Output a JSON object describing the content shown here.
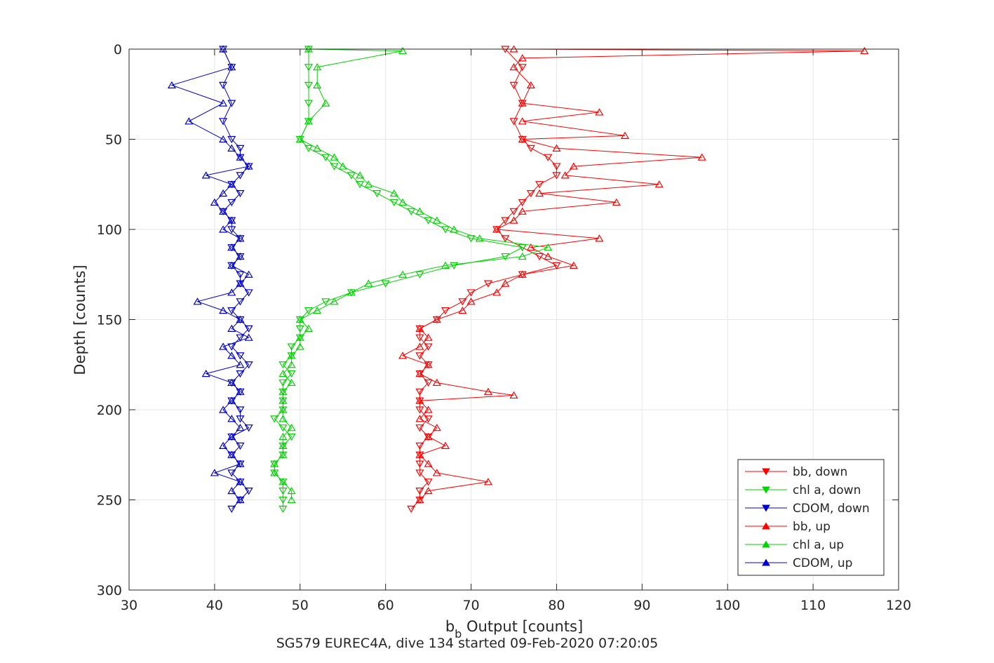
{
  "chart_data": {
    "type": "line",
    "xlabel": "b",
    "xlabel_subscript": "b",
    "xlabel_rest": " Output [counts]",
    "ylabel": "Depth [counts]",
    "caption": "SG579 EUREC4A, dive 134 started 09-Feb-2020 07:20:05",
    "xlim": [
      30,
      120
    ],
    "ylim": [
      0,
      300
    ],
    "y_reversed": true,
    "grid": true,
    "legend_position": "bottom-right",
    "x_ticks": [
      "30",
      "40",
      "50",
      "60",
      "70",
      "80",
      "90",
      "100",
      "110",
      "120"
    ],
    "y_ticks": [
      "0",
      "50",
      "100",
      "150",
      "200",
      "250",
      "300"
    ],
    "series": [
      {
        "name": "bb, down",
        "color": "#ff0000",
        "marker": "triangle-down",
        "depth": [
          0,
          10,
          20,
          30,
          40,
          50,
          55,
          60,
          65,
          70,
          75,
          80,
          85,
          90,
          95,
          100,
          105,
          110,
          115,
          120,
          125,
          130,
          135,
          140,
          145,
          150,
          155,
          160,
          165,
          170,
          175,
          180,
          185,
          190,
          195,
          200,
          205,
          210,
          215,
          220,
          225,
          230,
          235,
          240,
          245,
          250,
          255
        ],
        "x": [
          74,
          76,
          75,
          76,
          75,
          76,
          77,
          79,
          80,
          80,
          78,
          77,
          76,
          75,
          74,
          73,
          74,
          76,
          78,
          80,
          76,
          72,
          70,
          69,
          67,
          66,
          64,
          64,
          65,
          64,
          65,
          64,
          65,
          64,
          64,
          64,
          65,
          64,
          65,
          64,
          64,
          64,
          64,
          65,
          64,
          64,
          63
        ]
      },
      {
        "name": "chl a, down",
        "color": "#00d400",
        "marker": "triangle-down",
        "depth": [
          0,
          10,
          20,
          30,
          40,
          50,
          55,
          60,
          65,
          70,
          75,
          80,
          85,
          90,
          95,
          100,
          105,
          110,
          115,
          120,
          125,
          130,
          135,
          140,
          145,
          150,
          155,
          160,
          165,
          170,
          175,
          180,
          185,
          190,
          195,
          200,
          205,
          210,
          215,
          220,
          225,
          230,
          235,
          240,
          245,
          250,
          255
        ],
        "x": [
          51,
          51,
          51,
          51,
          51,
          50,
          51,
          53,
          54,
          56,
          57,
          59,
          61,
          63,
          65,
          67,
          70,
          76,
          74,
          68,
          64,
          60,
          56,
          53,
          51,
          50,
          50,
          50,
          49,
          49,
          48,
          49,
          48,
          48,
          48,
          48,
          47,
          48,
          49,
          48,
          48,
          47,
          47,
          48,
          48,
          48,
          48
        ]
      },
      {
        "name": "CDOM, down",
        "color": "#0000cc",
        "marker": "triangle-down",
        "depth": [
          0,
          10,
          20,
          30,
          40,
          50,
          55,
          60,
          65,
          70,
          75,
          80,
          85,
          90,
          95,
          100,
          105,
          110,
          115,
          120,
          125,
          130,
          135,
          140,
          145,
          150,
          155,
          160,
          165,
          170,
          175,
          180,
          185,
          190,
          195,
          200,
          205,
          210,
          215,
          220,
          225,
          230,
          235,
          240,
          245,
          250,
          255
        ],
        "x": [
          41,
          42,
          41,
          42,
          41,
          42,
          43,
          43,
          44,
          43,
          42,
          43,
          42,
          41,
          42,
          42,
          43,
          42,
          43,
          42,
          43,
          43,
          44,
          43,
          42,
          43,
          44,
          43,
          42,
          43,
          44,
          43,
          42,
          43,
          42,
          43,
          43,
          44,
          42,
          43,
          42,
          43,
          42,
          43,
          44,
          43,
          42
        ]
      },
      {
        "name": "bb, up",
        "color": "#ff0000",
        "marker": "triangle-up",
        "depth": [
          0,
          1,
          5,
          10,
          20,
          30,
          35,
          40,
          48,
          50,
          55,
          60,
          65,
          70,
          75,
          80,
          85,
          90,
          95,
          100,
          105,
          110,
          115,
          120,
          125,
          130,
          135,
          140,
          145,
          150,
          155,
          160,
          165,
          170,
          175,
          180,
          185,
          190,
          192,
          195,
          200,
          205,
          210,
          215,
          220,
          225,
          230,
          235,
          240,
          245,
          250
        ],
        "x": [
          75,
          116,
          76,
          75,
          77,
          76,
          85,
          76,
          88,
          76,
          80,
          97,
          82,
          81,
          92,
          78,
          87,
          76,
          75,
          73,
          85,
          77,
          79,
          82,
          76,
          74,
          73,
          70,
          69,
          66,
          64,
          65,
          64,
          62,
          65,
          64,
          66,
          72,
          75,
          64,
          65,
          64,
          66,
          65,
          67,
          64,
          65,
          66,
          72,
          65,
          64
        ]
      },
      {
        "name": "chl a, up",
        "color": "#00d400",
        "marker": "triangle-up",
        "depth": [
          0,
          1,
          10,
          20,
          30,
          40,
          50,
          55,
          60,
          65,
          70,
          75,
          80,
          85,
          90,
          95,
          100,
          105,
          110,
          115,
          120,
          125,
          130,
          135,
          140,
          145,
          150,
          155,
          160,
          165,
          170,
          175,
          180,
          185,
          190,
          195,
          200,
          205,
          210,
          215,
          220,
          225,
          230,
          235,
          240,
          245,
          250
        ],
        "x": [
          51,
          62,
          52,
          52,
          53,
          51,
          50,
          52,
          54,
          55,
          57,
          58,
          61,
          62,
          64,
          66,
          68,
          71,
          79,
          76,
          67,
          62,
          58,
          56,
          54,
          52,
          50,
          51,
          50,
          50,
          49,
          49,
          48,
          49,
          48,
          48,
          48,
          48,
          49,
          48,
          48,
          48,
          47,
          47,
          48,
          49,
          49
        ]
      },
      {
        "name": "CDOM, up",
        "color": "#0000cc",
        "marker": "triangle-up",
        "depth": [
          0,
          10,
          20,
          30,
          40,
          50,
          55,
          60,
          65,
          70,
          75,
          80,
          85,
          90,
          95,
          100,
          105,
          110,
          115,
          120,
          125,
          130,
          135,
          140,
          145,
          150,
          155,
          160,
          165,
          170,
          175,
          180,
          185,
          190,
          195,
          200,
          205,
          210,
          215,
          220,
          225,
          230,
          235,
          240,
          245,
          250
        ],
        "x": [
          41,
          42,
          35,
          41,
          37,
          41,
          42,
          43,
          44,
          39,
          42,
          41,
          40,
          41,
          42,
          41,
          43,
          42,
          43,
          42,
          44,
          43,
          42,
          38,
          41,
          43,
          42,
          44,
          41,
          42,
          43,
          39,
          42,
          43,
          42,
          41,
          42,
          43,
          42,
          41,
          42,
          43,
          40,
          43,
          42,
          43
        ]
      }
    ]
  }
}
